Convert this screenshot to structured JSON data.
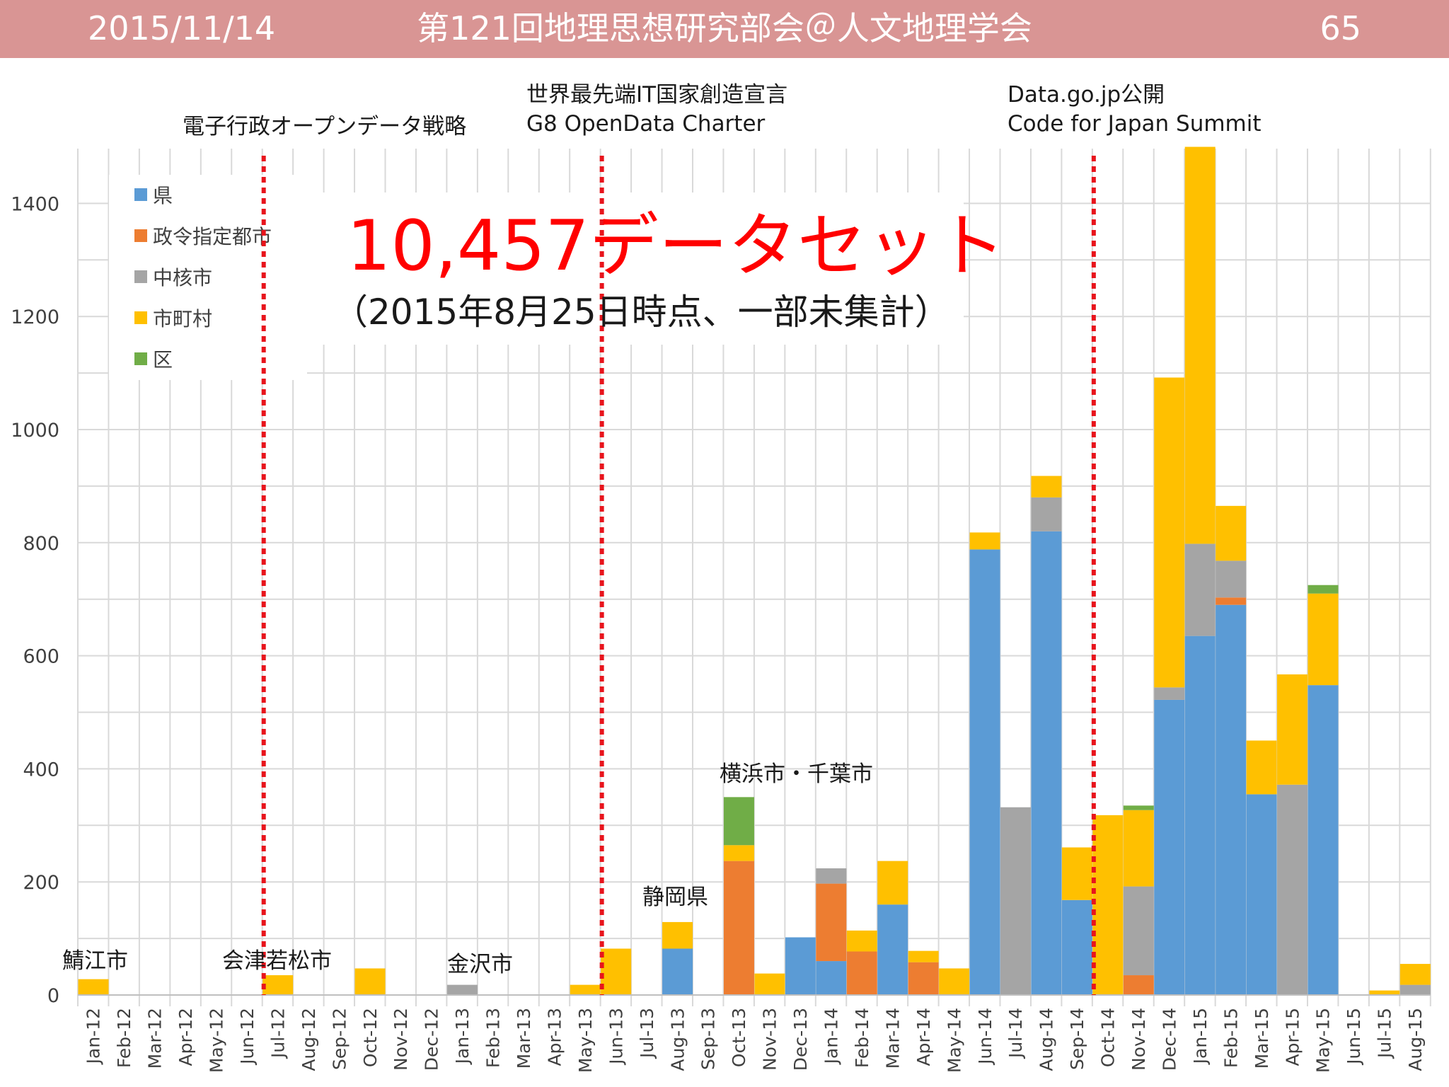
{
  "header": {
    "date": "2015/11/14",
    "title": "第121回地理思想研究部会＠人文地理学会",
    "page_number": "65",
    "background_color": "#d99594",
    "text_color": "#ffffff"
  },
  "chart_data": {
    "type": "bar",
    "stacked": true,
    "title": "",
    "xlabel": "",
    "ylabel": "",
    "ylim": [
      0,
      1500
    ],
    "yticks": [
      0,
      200,
      400,
      600,
      800,
      1000,
      1200,
      1400
    ],
    "grid": true,
    "legend_position": "top-left",
    "categories": [
      "Jan-12",
      "Feb-12",
      "Mar-12",
      "Apr-12",
      "May-12",
      "Jun-12",
      "Jul-12",
      "Aug-12",
      "Sep-12",
      "Oct-12",
      "Nov-12",
      "Dec-12",
      "Jan-13",
      "Feb-13",
      "Mar-13",
      "Apr-13",
      "May-13",
      "Jun-13",
      "Jul-13",
      "Aug-13",
      "Sep-13",
      "Oct-13",
      "Nov-13",
      "Dec-13",
      "Jan-14",
      "Feb-14",
      "Mar-14",
      "Apr-14",
      "May-14",
      "Jun-14",
      "Jul-14",
      "Aug-14",
      "Sep-14",
      "Oct-14",
      "Nov-14",
      "Dec-14",
      "Jan-15",
      "Feb-15",
      "Mar-15",
      "Apr-15",
      "May-15",
      "Jun-15",
      "Jul-15",
      "Aug-15"
    ],
    "series": [
      {
        "name": "県",
        "color": "#5b9bd5",
        "values": [
          0,
          0,
          0,
          0,
          0,
          0,
          0,
          0,
          0,
          0,
          0,
          0,
          0,
          0,
          0,
          0,
          0,
          0,
          0,
          82,
          0,
          0,
          0,
          102,
          60,
          0,
          160,
          0,
          0,
          788,
          0,
          820,
          168,
          0,
          0,
          522,
          635,
          690,
          355,
          0,
          548,
          0,
          0,
          0
        ]
      },
      {
        "name": "政令指定都市",
        "color": "#ed7d31",
        "values": [
          0,
          0,
          0,
          0,
          0,
          0,
          0,
          0,
          0,
          0,
          0,
          0,
          0,
          0,
          0,
          0,
          0,
          0,
          0,
          0,
          0,
          237,
          0,
          0,
          137,
          77,
          0,
          58,
          0,
          0,
          0,
          0,
          0,
          0,
          35,
          0,
          0,
          13,
          0,
          0,
          0,
          0,
          0,
          0
        ]
      },
      {
        "name": "中核市",
        "color": "#a5a5a5",
        "values": [
          0,
          0,
          0,
          0,
          0,
          0,
          0,
          0,
          0,
          0,
          0,
          0,
          18,
          0,
          0,
          0,
          0,
          0,
          0,
          0,
          0,
          0,
          0,
          0,
          27,
          0,
          0,
          0,
          0,
          0,
          332,
          60,
          0,
          0,
          157,
          22,
          163,
          65,
          0,
          372,
          0,
          0,
          0,
          18
        ]
      },
      {
        "name": "市町村",
        "color": "#ffc000",
        "values": [
          28,
          0,
          0,
          0,
          0,
          0,
          35,
          0,
          0,
          47,
          0,
          0,
          0,
          0,
          0,
          0,
          18,
          82,
          0,
          47,
          0,
          28,
          38,
          0,
          0,
          37,
          77,
          20,
          47,
          30,
          0,
          38,
          93,
          318,
          135,
          548,
          702,
          97,
          95,
          195,
          162,
          0,
          8,
          37
        ]
      },
      {
        "name": "区",
        "color": "#70ad47",
        "values": [
          0,
          0,
          0,
          0,
          0,
          0,
          0,
          0,
          0,
          0,
          0,
          0,
          0,
          0,
          0,
          0,
          0,
          0,
          0,
          0,
          0,
          85,
          0,
          0,
          0,
          0,
          0,
          0,
          0,
          0,
          0,
          0,
          0,
          0,
          8,
          0,
          0,
          0,
          0,
          0,
          15,
          0,
          0,
          0
        ]
      }
    ],
    "milestones": [
      {
        "after": "Jun-12",
        "label_lines": [
          "電子行政オープンデータ戦略"
        ]
      },
      {
        "after": "May-13",
        "label_lines": [
          "世界最先端IT国家創造宣言",
          "G8 OpenData Charter"
        ]
      },
      {
        "after": "Sep-14",
        "label_lines": [
          "Data.go.jp公開",
          "Code for Japan Summit"
        ]
      }
    ],
    "milestone_color": "#e8141c",
    "annotations": [
      {
        "category": "Jan-12",
        "text": "鯖江市"
      },
      {
        "category": "Jul-12",
        "text": "会津若松市"
      },
      {
        "category": "Jan-13",
        "text": "金沢市"
      },
      {
        "category": "Aug-13",
        "text": "静岡県"
      },
      {
        "category": "Oct-13",
        "text": "横浜市・千葉市"
      }
    ],
    "headline": "10,457データセット",
    "headline_color": "#ff0000",
    "subheadline": "（2015年8月25日時点、一部未集計）"
  }
}
